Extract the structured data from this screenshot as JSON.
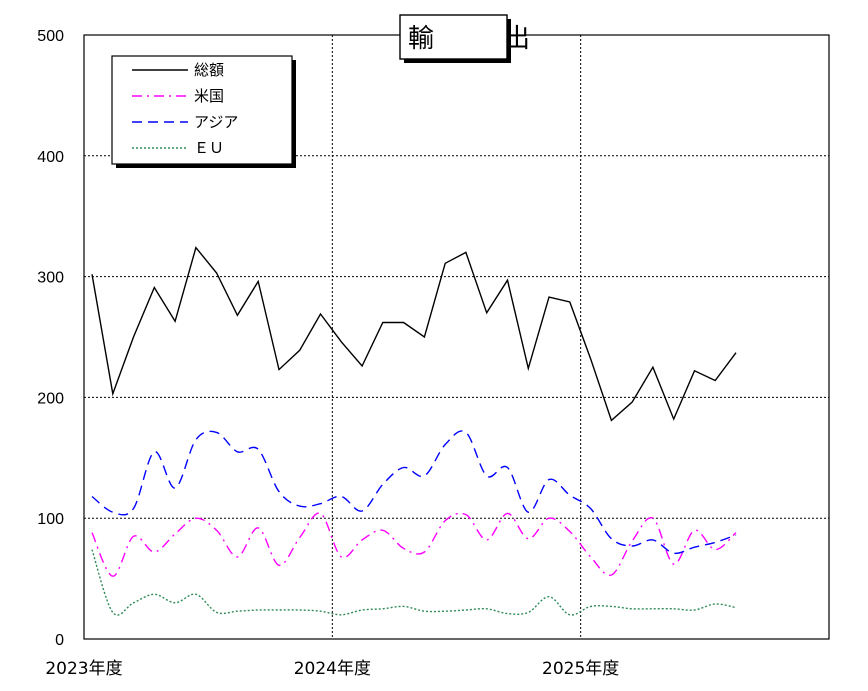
{
  "chart_data": {
    "type": "line",
    "title": "輸　出",
    "ylim": [
      0,
      500
    ],
    "y_ticks": [
      "0",
      "100",
      "200",
      "300",
      "400",
      "500"
    ],
    "x_ticks": [
      "2023年度",
      "2024年度",
      "2025年度"
    ],
    "grid": true,
    "legend_position": "top-left",
    "months_total": 36,
    "series": [
      {
        "name": "総額",
        "color": "#000000",
        "dash": "solid",
        "values": [
          302,
          203,
          250,
          291,
          263,
          324,
          303,
          268,
          296,
          223,
          239,
          269,
          246,
          226,
          262,
          262,
          250,
          311,
          320,
          270,
          297,
          224,
          283,
          279,
          232,
          181,
          196,
          225,
          182,
          222,
          214,
          237
        ]
      },
      {
        "name": "米国",
        "color": "#ff00ff",
        "dash": "dashdot",
        "values": [
          88,
          52,
          85,
          72,
          87,
          100,
          90,
          68,
          92,
          61,
          84,
          104,
          68,
          82,
          90,
          75,
          72,
          98,
          103,
          82,
          104,
          83,
          100,
          89,
          68,
          53,
          81,
          100,
          62,
          90,
          74,
          88
        ]
      },
      {
        "name": "アジア",
        "color": "#0000ff",
        "dash": "dashed",
        "values": [
          118,
          105,
          108,
          155,
          125,
          165,
          171,
          155,
          157,
          122,
          110,
          112,
          118,
          106,
          128,
          142,
          135,
          161,
          171,
          135,
          142,
          105,
          132,
          119,
          108,
          83,
          77,
          82,
          71,
          76,
          80,
          86
        ]
      },
      {
        "name": "ＥＵ",
        "color": "#2e8b57",
        "dash": "dotted",
        "values": [
          74,
          22,
          30,
          37,
          30,
          37,
          22,
          23,
          24,
          24,
          24,
          23,
          20,
          24,
          25,
          27,
          23,
          23,
          24,
          25,
          21,
          22,
          35,
          20,
          27,
          27,
          25,
          25,
          25,
          24,
          29,
          26
        ]
      }
    ]
  }
}
